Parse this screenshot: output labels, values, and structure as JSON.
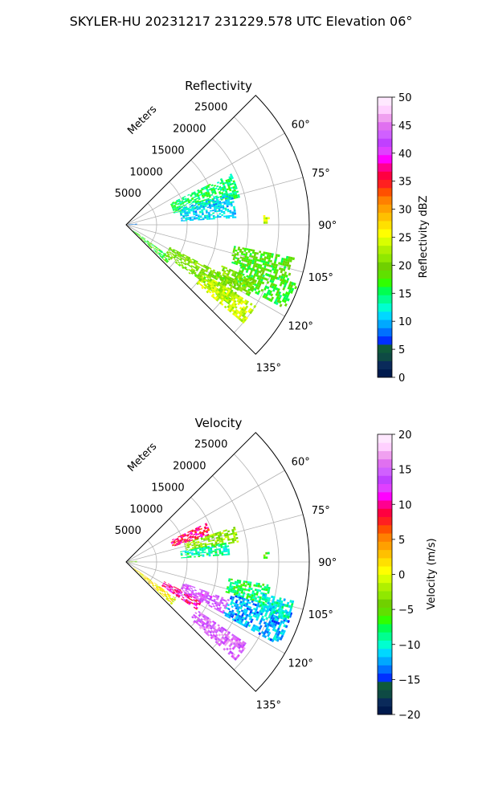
{
  "figure": {
    "suptitle": "SKYLER-HU  20231217  231229.578 UTC Elevation 06°"
  },
  "chart_data": [
    {
      "type": "polar-sector-heatmap",
      "title": "Reflectivity",
      "radial_label": "Meters",
      "radial_ticks": [
        "5000",
        "10000",
        "15000",
        "20000",
        "25000"
      ],
      "theta_ticks": [
        "60°",
        "75°",
        "90°",
        "105°",
        "120°",
        "135°"
      ],
      "theta_range_deg": [
        45,
        135
      ],
      "r_max": 30000,
      "grid": true,
      "colorbar": {
        "label": "Reflectivity dBZ",
        "range": [
          0,
          50
        ],
        "ticks": [
          "0",
          "5",
          "10",
          "15",
          "20",
          "25",
          "30",
          "35",
          "40",
          "45",
          "50"
        ],
        "colors": [
          "#001a4d",
          "#0a2a5a",
          "#0e4a44",
          "#0f5a3a",
          "#0030ff",
          "#0070ff",
          "#00a8ff",
          "#00d8ff",
          "#00ffd0",
          "#00ff90",
          "#00ff50",
          "#30ff00",
          "#60e000",
          "#70d000",
          "#90e800",
          "#b0f000",
          "#d8ff00",
          "#ffff00",
          "#ffe000",
          "#ffc000",
          "#ffa000",
          "#ff8000",
          "#ff5000",
          "#ff2020",
          "#ff0040",
          "#ff0090",
          "#ff00ff",
          "#e040ff",
          "#c040ff",
          "#d060ff",
          "#e070f0",
          "#f0a0f0",
          "#ffd0ff",
          "#ffe8ff"
        ]
      },
      "echo_regions": [
        {
          "theta": [
            64,
            76
          ],
          "r": [
            8000,
            19000
          ],
          "value": 15
        },
        {
          "theta": [
            73,
            86
          ],
          "r": [
            9000,
            18000
          ],
          "value": 11
        },
        {
          "theta": [
            86,
            89
          ],
          "r": [
            22500,
            23500
          ],
          "value": 24
        },
        {
          "theta": [
            84,
            92
          ],
          "r": [
            400,
            1800
          ],
          "value": 8
        },
        {
          "theta": [
            126,
            133
          ],
          "r": [
            1500,
            9000
          ],
          "value": 17
        },
        {
          "theta": [
            117,
            127
          ],
          "r": [
            8000,
            21000
          ],
          "value": 20
        },
        {
          "theta": [
            122,
            130
          ],
          "r": [
            15000,
            25000
          ],
          "value": 24
        },
        {
          "theta": [
            101,
            110
          ],
          "r": [
            18000,
            28000
          ],
          "value": 18
        },
        {
          "theta": [
            109,
            118
          ],
          "r": [
            20000,
            29500
          ],
          "value": 17
        },
        {
          "theta": [
            113,
            120
          ],
          "r": [
            17000,
            23000
          ],
          "value": 20
        }
      ]
    },
    {
      "type": "polar-sector-heatmap",
      "title": "Velocity",
      "radial_label": "Meters",
      "radial_ticks": [
        "5000",
        "10000",
        "15000",
        "20000",
        "25000"
      ],
      "theta_ticks": [
        "60°",
        "75°",
        "90°",
        "105°",
        "120°",
        "135°"
      ],
      "theta_range_deg": [
        45,
        135
      ],
      "r_max": 30000,
      "grid": true,
      "colorbar": {
        "label": "Velocity (m/s)",
        "range": [
          -20,
          20
        ],
        "ticks": [
          "−20",
          "−15",
          "−10",
          "−5",
          "0",
          "5",
          "10",
          "15",
          "20"
        ],
        "colors": [
          "#001a4d",
          "#0a2a5a",
          "#0e4a44",
          "#0f5a3a",
          "#0030ff",
          "#0070ff",
          "#00a8ff",
          "#00d8ff",
          "#00ffd0",
          "#00ff90",
          "#00ff50",
          "#30ff00",
          "#60e000",
          "#70d000",
          "#90e800",
          "#b0f000",
          "#d8ff00",
          "#ffff00",
          "#ffe000",
          "#ffc000",
          "#ffa000",
          "#ff8000",
          "#ff5000",
          "#ff2020",
          "#ff0040",
          "#ff0090",
          "#ff00ff",
          "#e040ff",
          "#c040ff",
          "#d060ff",
          "#e070f0",
          "#f0a0f0",
          "#ffd0ff",
          "#ffe8ff"
        ]
      },
      "echo_regions": [
        {
          "theta": [
            64,
            72
          ],
          "r": [
            8000,
            14500
          ],
          "value": 9
        },
        {
          "theta": [
            72,
            80
          ],
          "r": [
            10000,
            18500
          ],
          "value": -3
        },
        {
          "theta": [
            79,
            86
          ],
          "r": [
            9000,
            17000
          ],
          "value": -9
        },
        {
          "theta": [
            86,
            89
          ],
          "r": [
            22500,
            23500
          ],
          "value": -5
        },
        {
          "theta": [
            84,
            92
          ],
          "r": [
            400,
            1800
          ],
          "value": -4
        },
        {
          "theta": [
            126,
            133
          ],
          "r": [
            1500,
            10000
          ],
          "value": 1
        },
        {
          "theta": [
            117,
            124
          ],
          "r": [
            7000,
            14000
          ],
          "value": 10
        },
        {
          "theta": [
            110,
            118
          ],
          "r": [
            10000,
            18000
          ],
          "value": 14
        },
        {
          "theta": [
            124,
            132
          ],
          "r": [
            14000,
            24000
          ],
          "value": 15
        },
        {
          "theta": [
            99,
            107
          ],
          "r": [
            17000,
            24000
          ],
          "value": -8
        },
        {
          "theta": [
            107,
            118
          ],
          "r": [
            18000,
            28500
          ],
          "value": -12
        },
        {
          "theta": [
            103,
            110
          ],
          "r": [
            23000,
            28000
          ],
          "value": -10
        }
      ]
    }
  ]
}
